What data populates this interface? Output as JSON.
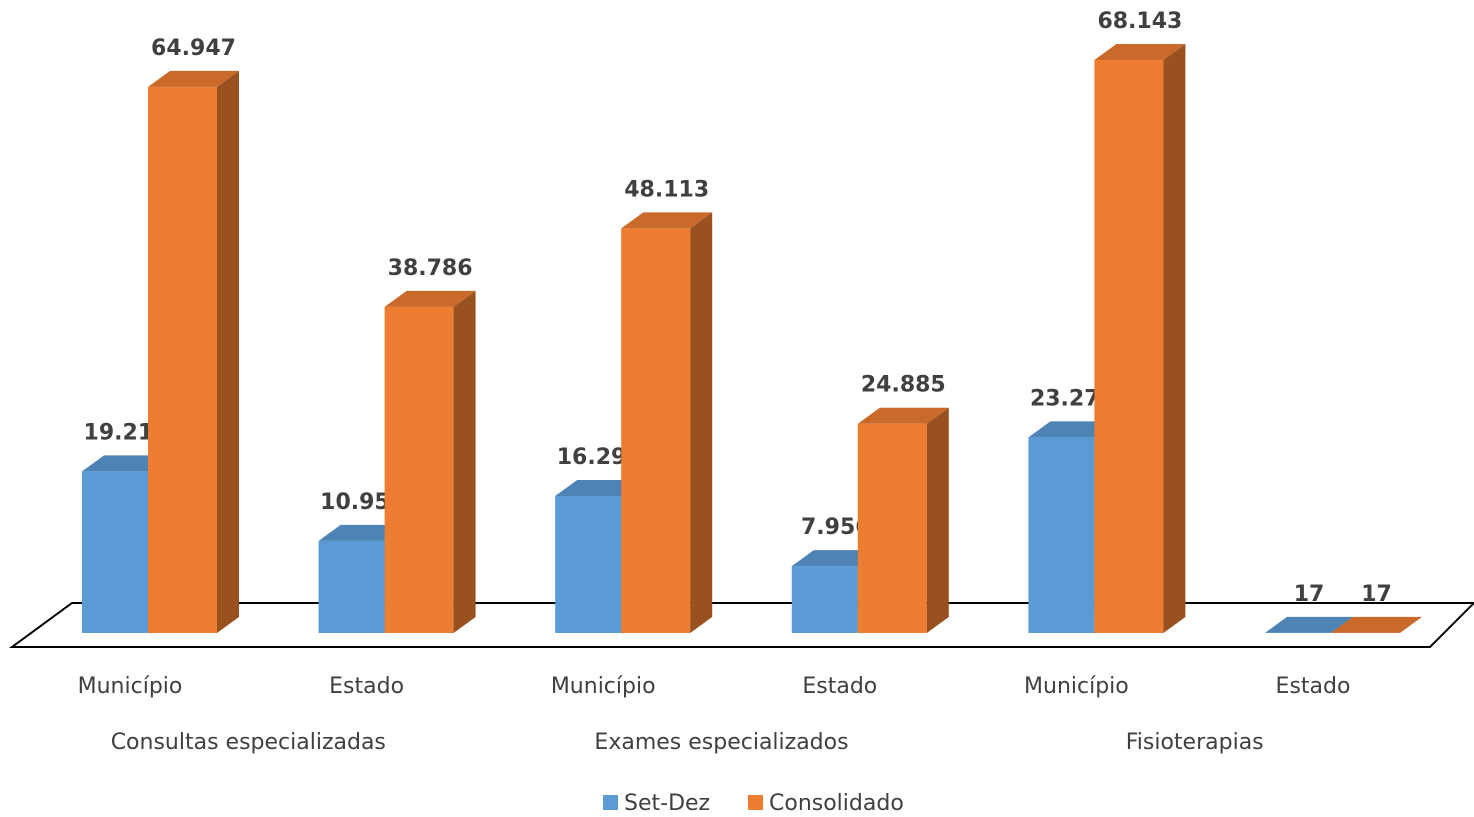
{
  "chart_data": {
    "type": "bar3d",
    "categories": [
      "Município",
      "Estado",
      "Município",
      "Estado",
      "Município",
      "Estado"
    ],
    "groups": [
      "Consultas especializadas",
      "Exames especializados",
      "Fisioterapias"
    ],
    "series": [
      {
        "name": "Set-Dez",
        "color": "#5b9bd5",
        "values": [
          19217,
          10950,
          16294,
          7956,
          23271,
          17
        ],
        "value_labels": [
          "19.217",
          "10.950",
          "16.294",
          "7.956",
          "23.271",
          "17"
        ]
      },
      {
        "name": "Consolidado",
        "color": "#ed7d31",
        "values": [
          64947,
          38786,
          48113,
          24885,
          68143,
          17
        ],
        "value_labels": [
          "64.947",
          "38.786",
          "48.113",
          "24.885",
          "68.143",
          "17"
        ]
      }
    ],
    "legend": "bottom"
  }
}
